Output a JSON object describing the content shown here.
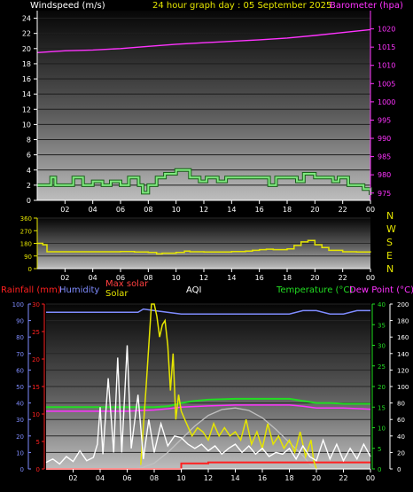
{
  "header": {
    "left_label": "Windspeed (m/s)",
    "center_label": "24 hour graph day : 05 September 2025",
    "right_label": "Barometer (hpa)"
  },
  "colors": {
    "windspeed": "#ffffff",
    "wind_line": "#7ee87e",
    "wind_outline": "#1a5f1a",
    "barometer": "#ff33ff",
    "direction": "#e5e500",
    "rain": "#ff2020",
    "humidity": "#7f8cff",
    "solar": "#e5e500",
    "max_solar": "#ff4040",
    "temperature": "#22dd22",
    "dewpoint": "#ff33ff",
    "uv_curve": "#c0c0c0",
    "aqi": "#ffffff"
  },
  "chart_data": [
    {
      "type": "line",
      "name": "wind-barometer",
      "xticks": [
        "02",
        "04",
        "06",
        "08",
        "10",
        "12",
        "14",
        "16",
        "18",
        "20",
        "22",
        "00"
      ],
      "left_axis": {
        "label": "Windspeed (m/s)",
        "range": [
          0,
          25
        ],
        "ticks": [
          "0",
          "2",
          "4",
          "6",
          "8",
          "10",
          "12",
          "14",
          "16",
          "18",
          "20",
          "22",
          "24"
        ]
      },
      "right_axis": {
        "label": "Barometer (hpa)",
        "range": [
          973,
          1025
        ],
        "ticks": [
          "975",
          "980",
          "985",
          "990",
          "995",
          "1000",
          "1005",
          "1010",
          "1015",
          "1020"
        ]
      },
      "series": [
        {
          "name": "Windspeed",
          "axis": "left",
          "x": [
            0,
            1,
            1.3,
            2,
            2.6,
            3.3,
            4,
            4.7,
            5.3,
            6,
            6.6,
            7.3,
            7.6,
            8,
            8.6,
            9.2,
            10,
            11,
            11.7,
            12.2,
            13,
            13.6,
            14.2,
            15,
            16,
            16.7,
            17.2,
            18,
            18.7,
            19.2,
            20,
            20.6,
            21.3,
            21.7,
            22.4,
            23,
            23.5,
            24
          ],
          "y": [
            2,
            3,
            2,
            2,
            3,
            2,
            2.5,
            2,
            2.5,
            2,
            3,
            2,
            1,
            2,
            3,
            3.5,
            4,
            3,
            2.5,
            3,
            2.5,
            3,
            3,
            3,
            3,
            2,
            3,
            3,
            2.5,
            3.5,
            3,
            3,
            2.5,
            3,
            2,
            2,
            1.5,
            0.7
          ]
        },
        {
          "name": "Barometer",
          "axis": "right",
          "x": [
            0,
            2,
            4,
            6,
            8,
            10,
            12,
            14,
            16,
            18,
            20,
            22,
            24
          ],
          "y": [
            1013.5,
            1014,
            1014.2,
            1014.6,
            1015.2,
            1015.8,
            1016.2,
            1016.6,
            1017,
            1017.5,
            1018.2,
            1019,
            1019.8
          ]
        }
      ]
    },
    {
      "type": "line",
      "name": "wind-direction",
      "xticks": [
        "02",
        "04",
        "06",
        "08",
        "10",
        "12",
        "14",
        "16",
        "18",
        "20",
        "22",
        "00"
      ],
      "axis": {
        "range": [
          0,
          360
        ],
        "ticks": [
          "0",
          "90",
          "180",
          "270",
          "360"
        ]
      },
      "compass": [
        "N",
        "W",
        "S",
        "E",
        "N"
      ],
      "series": [
        {
          "name": "Wind direction",
          "x": [
            0,
            0.4,
            0.7,
            3,
            5,
            6,
            7,
            8,
            8.6,
            9,
            10,
            10.6,
            11,
            12,
            13,
            14,
            15,
            15.5,
            16,
            16.5,
            17,
            18,
            18.5,
            19,
            19.5,
            20,
            20.5,
            21,
            22,
            23,
            24
          ],
          "y": [
            180,
            170,
            120,
            120,
            120,
            122,
            118,
            115,
            105,
            110,
            115,
            125,
            120,
            118,
            118,
            122,
            125,
            130,
            135,
            138,
            135,
            140,
            165,
            190,
            200,
            170,
            150,
            130,
            120,
            118,
            116
          ]
        }
      ]
    },
    {
      "type": "line",
      "name": "weather-panel",
      "labels": {
        "rain": "Rainfall (mm)",
        "humidity": "Humidity",
        "max_solar": "Max solar",
        "solar": "Solar",
        "aqi": "AQI",
        "temperature": "Temperature (°C)",
        "dewpoint": "Dew Point (°C)"
      },
      "xticks": [
        "02",
        "04",
        "06",
        "08",
        "10",
        "12",
        "14",
        "16",
        "18",
        "20",
        "22",
        "00"
      ],
      "axes": {
        "humidity": {
          "range": [
            0,
            100
          ],
          "ticks": [
            "0",
            "10",
            "20",
            "30",
            "40",
            "50",
            "60",
            "70",
            "80",
            "90",
            "100"
          ]
        },
        "rain": {
          "range": [
            0,
            30
          ],
          "ticks": [
            "0",
            "5",
            "10",
            "15",
            "20",
            "25",
            "30"
          ]
        },
        "temperature": {
          "range": [
            0,
            40
          ],
          "ticks": [
            "0",
            "5",
            "10",
            "15",
            "20",
            "25",
            "30",
            "35",
            "40"
          ]
        },
        "solar": {
          "range": [
            0,
            200
          ],
          "ticks": [
            "0",
            "20",
            "40",
            "60",
            "80",
            "100",
            "120",
            "140",
            "160",
            "180",
            "200"
          ]
        }
      },
      "series": [
        {
          "name": "Humidity",
          "axis": "humidity",
          "x": [
            0,
            2,
            4,
            6,
            6.8,
            7.2,
            8,
            10,
            12,
            14,
            16,
            17,
            18,
            19,
            20,
            21,
            22,
            23,
            24
          ],
          "y": [
            95,
            95,
            95,
            95,
            95,
            97,
            96,
            94,
            94,
            94,
            94,
            94,
            94,
            96,
            96,
            94,
            94,
            96,
            96
          ]
        },
        {
          "name": "Temperature",
          "axis": "temperature",
          "x": [
            0,
            1,
            2,
            3,
            4,
            5,
            6,
            7,
            8,
            9,
            10,
            11,
            12,
            13,
            14,
            15,
            16,
            17,
            18,
            19,
            20,
            21,
            22,
            23,
            24
          ],
          "y": [
            15,
            15,
            15,
            15,
            15,
            15,
            15,
            15,
            15,
            15.2,
            16,
            16.5,
            16.8,
            16.9,
            17,
            17,
            17,
            17,
            17,
            16.5,
            16,
            16,
            15.8,
            15.8,
            15.8
          ]
        },
        {
          "name": "Dew Point",
          "axis": "temperature",
          "x": [
            0,
            2,
            4,
            6,
            8,
            9,
            10,
            12,
            14,
            16,
            18,
            19,
            20,
            22,
            24
          ],
          "y": [
            14,
            14,
            14,
            14,
            14.3,
            14.6,
            15,
            15.3,
            15.5,
            15.5,
            15.5,
            15.2,
            14.8,
            14.8,
            14.5
          ]
        },
        {
          "name": "Max solar",
          "axis": "solar",
          "x": [
            0,
            6.5,
            7,
            8,
            9,
            10,
            11,
            12,
            13,
            14,
            15,
            16,
            17,
            18,
            19,
            19.5,
            20,
            24
          ],
          "y": [
            0,
            0,
            1,
            7,
            20,
            36,
            52,
            65,
            72,
            74,
            71,
            62,
            48,
            32,
            16,
            6,
            0,
            0
          ]
        },
        {
          "name": "Rain",
          "axis": "rain",
          "x": [
            0,
            9.6,
            10,
            12,
            16,
            18,
            20,
            22,
            24
          ],
          "y": [
            0,
            0,
            1,
            1.2,
            1.2,
            1.2,
            1.2,
            1.2,
            1.2
          ]
        },
        {
          "name": "Solar",
          "axis": "solar",
          "x": [
            7,
            7.4,
            7.8,
            8,
            8.2,
            8.4,
            8.6,
            8.8,
            9,
            9.2,
            9.4,
            9.6,
            9.8,
            10,
            10.4,
            10.8,
            11.2,
            11.6,
            12,
            12.4,
            12.8,
            13.2,
            13.6,
            14,
            14.4,
            14.8,
            15.2,
            15.6,
            16,
            16.4,
            16.8,
            17.2,
            17.6,
            18,
            18.4,
            18.8,
            19.2,
            19.6,
            19.8,
            20
          ],
          "y": [
            5,
            100,
            200,
            200,
            185,
            160,
            175,
            180,
            150,
            95,
            140,
            60,
            90,
            70,
            55,
            40,
            50,
            45,
            35,
            55,
            40,
            50,
            40,
            45,
            35,
            60,
            30,
            45,
            25,
            55,
            30,
            40,
            25,
            35,
            20,
            45,
            15,
            35,
            10,
            0
          ]
        },
        {
          "name": "AQI",
          "axis": "solar",
          "x": [
            0,
            0.5,
            1,
            1.5,
            2,
            2.5,
            3,
            3.5,
            3.8,
            4,
            4.2,
            4.6,
            5,
            5.3,
            5.6,
            6,
            6.3,
            6.8,
            7.2,
            7.6,
            8,
            8.5,
            9,
            9.5,
            10,
            10.5,
            11,
            11.5,
            12,
            12.5,
            13,
            13.5,
            14,
            14.5,
            15,
            15.5,
            16,
            16.5,
            17,
            17.5,
            18,
            18.5,
            19,
            19.5,
            20,
            20.5,
            21,
            21.5,
            22,
            22.5,
            23,
            23.5,
            24
          ],
          "y": [
            8,
            12,
            6,
            15,
            9,
            22,
            10,
            14,
            30,
            75,
            18,
            110,
            20,
            135,
            20,
            150,
            25,
            90,
            12,
            60,
            20,
            55,
            28,
            40,
            38,
            30,
            25,
            30,
            22,
            28,
            18,
            25,
            30,
            20,
            28,
            18,
            25,
            15,
            20,
            18,
            25,
            12,
            28,
            15,
            10,
            35,
            12,
            30,
            10,
            25,
            12,
            30,
            15
          ]
        }
      ]
    }
  ]
}
